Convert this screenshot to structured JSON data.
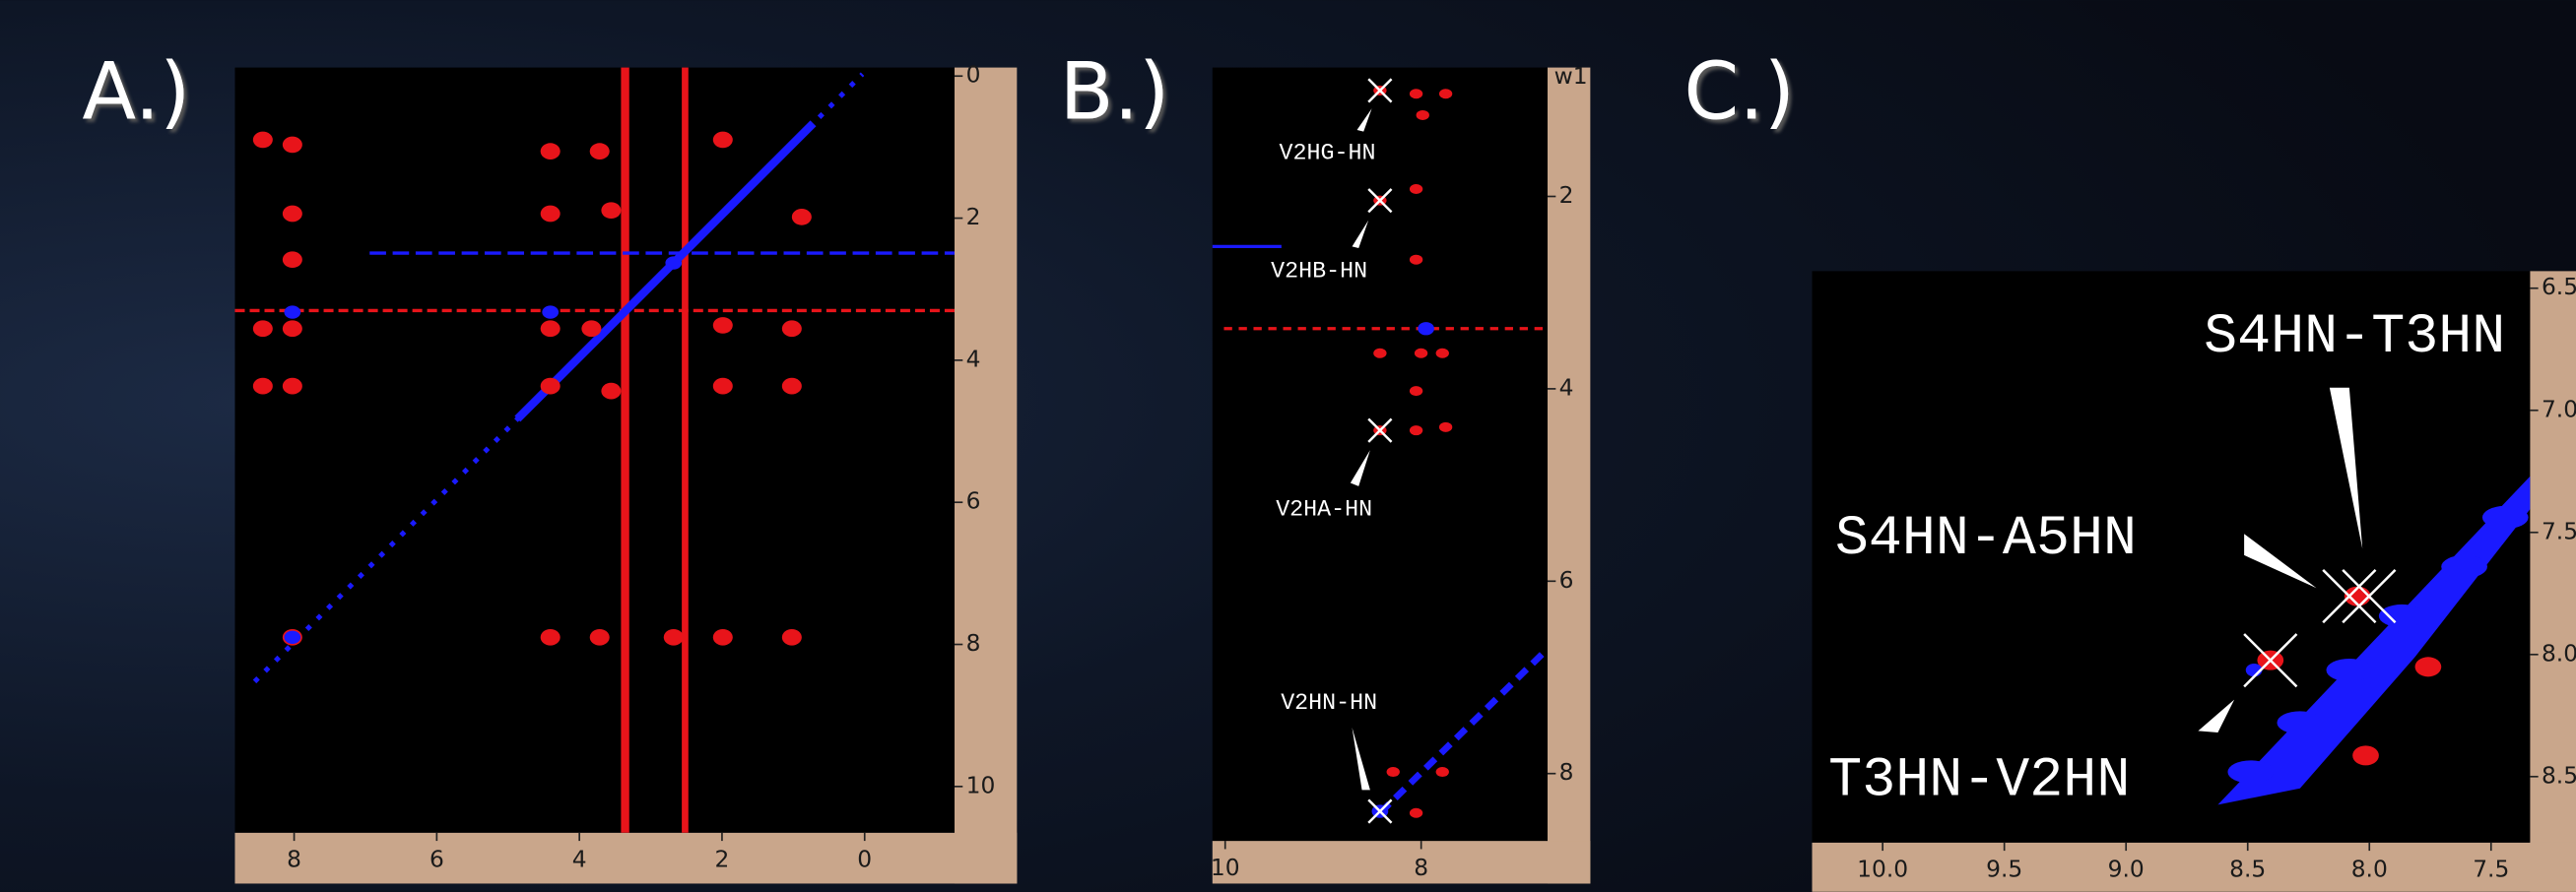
{
  "panels": [
    {
      "label": "A.)",
      "xlim": [
        8.83,
        -1.26
      ],
      "ylim": [
        -0.12,
        10.65
      ],
      "xticks": [
        8,
        6,
        4,
        2,
        0
      ],
      "yticks": [
        0,
        2,
        4,
        6,
        8,
        10
      ]
    },
    {
      "label": "B.)",
      "axis_label": "w1",
      "xlim": [
        10.13,
        6.71
      ],
      "ylim": [
        0.66,
        8.7
      ],
      "xticks": [
        10,
        8
      ],
      "yticks": [
        2,
        4,
        6,
        8
      ],
      "annotations": [
        "V2HG-HN",
        "V2HB-HN",
        "V2HA-HN",
        "V2HN-HN"
      ]
    },
    {
      "label": "C.)",
      "xlim": [
        10.29,
        7.34
      ],
      "ylim": [
        6.43,
        8.77
      ],
      "xticks": [
        {
          "value": 10,
          "label": "10.0"
        },
        {
          "value": 9.5,
          "label": "9.5"
        },
        {
          "value": 9,
          "label": "9.0"
        },
        {
          "value": 8.5,
          "label": "8.5"
        },
        {
          "value": 8,
          "label": "8.0"
        },
        {
          "value": 7.5,
          "label": "7.5"
        }
      ],
      "yticks": [
        {
          "value": 6.5,
          "label": "6.5"
        },
        {
          "value": 7,
          "label": "7.0"
        },
        {
          "value": 7.5,
          "label": "7.5"
        },
        {
          "value": 8,
          "label": "8.0"
        },
        {
          "value": 8.5,
          "label": "8.5"
        }
      ],
      "annotations": [
        "S4HN-T3HN",
        "S4HN-A5HN",
        "T3HN-V2HN"
      ]
    }
  ]
}
